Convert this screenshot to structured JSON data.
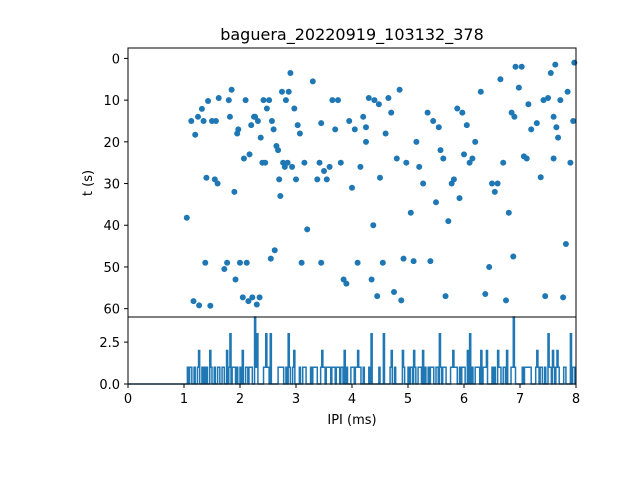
{
  "chart_data": [
    {
      "type": "scatter",
      "title": "baguera_20220919_103132_378",
      "xlabel": "",
      "ylabel": "t (s)",
      "xlim": [
        0,
        8
      ],
      "ylim": [
        62,
        -2.5
      ],
      "y_inverted": true,
      "yticks": [
        "0",
        "10",
        "20",
        "30",
        "40",
        "50",
        "60"
      ],
      "color": "#1f77b4",
      "points": [
        [
          1.05,
          38.2
        ],
        [
          1.13,
          15.0
        ],
        [
          1.17,
          58.2
        ],
        [
          1.2,
          18.3
        ],
        [
          1.25,
          14.0
        ],
        [
          1.27,
          59.2
        ],
        [
          1.32,
          12.1
        ],
        [
          1.35,
          15.0
        ],
        [
          1.38,
          49.0
        ],
        [
          1.4,
          28.6
        ],
        [
          1.43,
          10.2
        ],
        [
          1.47,
          59.3
        ],
        [
          1.5,
          15.0
        ],
        [
          1.55,
          29.0
        ],
        [
          1.57,
          15.0
        ],
        [
          1.6,
          30.0
        ],
        [
          1.62,
          9.5
        ],
        [
          1.72,
          50.5
        ],
        [
          1.77,
          49.0
        ],
        [
          1.8,
          10.0
        ],
        [
          1.82,
          14.0
        ],
        [
          1.85,
          7.5
        ],
        [
          1.9,
          32.0
        ],
        [
          1.92,
          53.0
        ],
        [
          1.95,
          18.0
        ],
        [
          1.97,
          17.0
        ],
        [
          2.0,
          49.0
        ],
        [
          2.05,
          57.3
        ],
        [
          2.07,
          24.0
        ],
        [
          2.1,
          10.0
        ],
        [
          2.12,
          49.0
        ],
        [
          2.15,
          58.2
        ],
        [
          2.17,
          23.0
        ],
        [
          2.2,
          16.0
        ],
        [
          2.22,
          57.3
        ],
        [
          2.25,
          14.0
        ],
        [
          2.27,
          14.0
        ],
        [
          2.3,
          59.0
        ],
        [
          2.32,
          15.0
        ],
        [
          2.35,
          57.3
        ],
        [
          2.37,
          19.0
        ],
        [
          2.4,
          25.0
        ],
        [
          2.42,
          10.0
        ],
        [
          2.45,
          25.0
        ],
        [
          2.48,
          12.0
        ],
        [
          2.52,
          10.0
        ],
        [
          2.55,
          48.0
        ],
        [
          2.57,
          15.0
        ],
        [
          2.6,
          17.0
        ],
        [
          2.62,
          46.0
        ],
        [
          2.65,
          21.0
        ],
        [
          2.68,
          22.0
        ],
        [
          2.7,
          29.0
        ],
        [
          2.72,
          33.0
        ],
        [
          2.75,
          8.0
        ],
        [
          2.77,
          25.0
        ],
        [
          2.8,
          26.0
        ],
        [
          2.82,
          10.0
        ],
        [
          2.85,
          25.0
        ],
        [
          2.87,
          8.0
        ],
        [
          2.9,
          3.5
        ],
        [
          2.93,
          26.0
        ],
        [
          2.97,
          12.0
        ],
        [
          3.0,
          29.0
        ],
        [
          3.03,
          16.0
        ],
        [
          3.07,
          18.0
        ],
        [
          3.1,
          49.0
        ],
        [
          3.15,
          25.0
        ],
        [
          3.2,
          41.0
        ],
        [
          3.3,
          5.5
        ],
        [
          3.38,
          29.0
        ],
        [
          3.42,
          25.0
        ],
        [
          3.45,
          49.0
        ],
        [
          3.5,
          27.0
        ],
        [
          3.55,
          29.0
        ],
        [
          3.6,
          26.0
        ],
        [
          3.65,
          10.0
        ],
        [
          3.7,
          17.0
        ],
        [
          3.75,
          10.0
        ],
        [
          3.8,
          25.0
        ],
        [
          3.85,
          53.0
        ],
        [
          3.9,
          54.0
        ],
        [
          3.95,
          15.0
        ],
        [
          4.0,
          31.0
        ],
        [
          4.05,
          17.0
        ],
        [
          4.1,
          49.0
        ],
        [
          4.15,
          26.0
        ],
        [
          4.2,
          14.0
        ],
        [
          4.25,
          20.0
        ],
        [
          4.3,
          9.5
        ],
        [
          4.35,
          53.0
        ],
        [
          4.38,
          40.0
        ],
        [
          4.4,
          10.0
        ],
        [
          4.45,
          57.0
        ],
        [
          4.48,
          11.0
        ],
        [
          4.5,
          28.6
        ],
        [
          4.55,
          49.0
        ],
        [
          4.6,
          18.0
        ],
        [
          4.65,
          9.5
        ],
        [
          4.7,
          13.0
        ],
        [
          4.75,
          56.0
        ],
        [
          4.8,
          24.0
        ],
        [
          4.85,
          7.5
        ],
        [
          4.88,
          58.0
        ],
        [
          4.92,
          48.0
        ],
        [
          4.97,
          25.0
        ],
        [
          5.05,
          37.0
        ],
        [
          5.1,
          48.6
        ],
        [
          5.15,
          20.0
        ],
        [
          5.2,
          26.0
        ],
        [
          5.27,
          30.0
        ],
        [
          5.35,
          13.0
        ],
        [
          5.4,
          48.6
        ],
        [
          5.45,
          15.0
        ],
        [
          5.5,
          34.5
        ],
        [
          5.58,
          22.0
        ],
        [
          5.63,
          24.0
        ],
        [
          5.67,
          57.0
        ],
        [
          5.72,
          39.0
        ],
        [
          5.78,
          30.0
        ],
        [
          5.82,
          29.0
        ],
        [
          5.88,
          12.0
        ],
        [
          5.92,
          33.5
        ],
        [
          5.97,
          13.0
        ],
        [
          6.0,
          23.0
        ],
        [
          6.05,
          16.0
        ],
        [
          6.1,
          25.0
        ],
        [
          6.15,
          24.0
        ],
        [
          6.2,
          20.0
        ],
        [
          6.3,
          8.0
        ],
        [
          6.38,
          56.5
        ],
        [
          6.45,
          50.0
        ],
        [
          6.5,
          30.0
        ],
        [
          6.55,
          32.0
        ],
        [
          6.6,
          30.0
        ],
        [
          6.65,
          5.0
        ],
        [
          6.7,
          25.0
        ],
        [
          6.75,
          58.0
        ],
        [
          6.8,
          37.0
        ],
        [
          6.85,
          13.0
        ],
        [
          6.88,
          47.5
        ],
        [
          6.92,
          2.0
        ],
        [
          6.98,
          7.0
        ],
        [
          7.03,
          2.0
        ],
        [
          7.07,
          23.5
        ],
        [
          7.12,
          24.0
        ],
        [
          7.15,
          11.0
        ],
        [
          7.2,
          17.0
        ],
        [
          7.3,
          15.5
        ],
        [
          7.37,
          28.5
        ],
        [
          7.42,
          10.0
        ],
        [
          7.45,
          57.0
        ],
        [
          7.5,
          9.5
        ],
        [
          7.55,
          3.5
        ],
        [
          7.6,
          24.0
        ],
        [
          7.63,
          1.5
        ],
        [
          7.68,
          19.0
        ],
        [
          7.72,
          10.0
        ],
        [
          7.77,
          57.3
        ],
        [
          7.82,
          44.5
        ],
        [
          7.85,
          8.0
        ],
        [
          7.9,
          25.0
        ],
        [
          7.97,
          1.0
        ],
        [
          7.95,
          15.0
        ],
        [
          7.65,
          16.5
        ],
        [
          7.6,
          14.0
        ],
        [
          6.9,
          14.0
        ],
        [
          5.55,
          16.5
        ],
        [
          4.25,
          16.5
        ],
        [
          3.45,
          15.5
        ]
      ]
    },
    {
      "type": "line",
      "title": "",
      "xlabel": "IPI (ms)",
      "ylabel": "",
      "xlim": [
        0,
        8
      ],
      "ylim": [
        0,
        4
      ],
      "xticks": [
        "0",
        "1",
        "2",
        "3",
        "4",
        "5",
        "6",
        "7",
        "8"
      ],
      "yticks": [
        "0.0",
        "2.5"
      ],
      "color": "#1f77b4",
      "bin_width": 0.02,
      "peaks": [
        [
          1.05,
          1
        ],
        [
          1.25,
          2
        ],
        [
          1.45,
          2
        ],
        [
          1.75,
          2
        ],
        [
          1.82,
          3
        ],
        [
          2.05,
          2
        ],
        [
          2.25,
          4
        ],
        [
          2.3,
          3
        ],
        [
          2.45,
          3
        ],
        [
          2.55,
          3
        ],
        [
          2.85,
          3
        ],
        [
          2.95,
          2
        ],
        [
          3.45,
          2
        ],
        [
          3.85,
          2
        ],
        [
          4.1,
          2
        ],
        [
          4.35,
          3
        ],
        [
          4.55,
          3
        ],
        [
          4.7,
          2
        ],
        [
          4.9,
          2
        ],
        [
          5.1,
          2
        ],
        [
          5.25,
          2
        ],
        [
          5.55,
          3
        ],
        [
          5.8,
          2
        ],
        [
          6.05,
          2
        ],
        [
          6.1,
          3
        ],
        [
          6.3,
          2
        ],
        [
          6.4,
          2
        ],
        [
          6.6,
          2
        ],
        [
          6.75,
          2
        ],
        [
          6.88,
          4
        ],
        [
          7.3,
          2
        ],
        [
          7.5,
          3
        ],
        [
          7.57,
          2
        ],
        [
          7.65,
          2
        ],
        [
          7.9,
          3
        ]
      ]
    }
  ]
}
